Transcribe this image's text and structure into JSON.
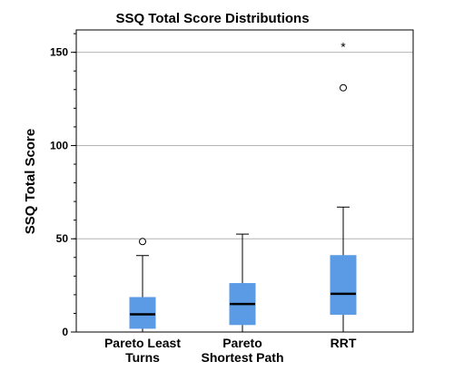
{
  "chart_data": {
    "type": "boxplot",
    "title": "SSQ Total Score Distributions",
    "xlabel": "",
    "ylabel": "SSQ Total Score",
    "ylim": [
      0,
      162
    ],
    "yticks": [
      0,
      50,
      100,
      150
    ],
    "minor_tick_step": 10,
    "grid": "horizontal at 50, 100, 150",
    "colors": {
      "box": "#5b9be6",
      "median": "#000000",
      "grid": "#b3b3b3"
    },
    "categories": [
      {
        "lines": [
          "Pareto Least",
          "Turns"
        ],
        "whisker_low": 0,
        "q1": 2,
        "median": 9.5,
        "q3": 18.5,
        "whisker_high": 41,
        "outliers": [
          48.5
        ],
        "extremes": []
      },
      {
        "lines": [
          "Pareto",
          "Shortest Path"
        ],
        "whisker_low": 0,
        "q1": 4,
        "median": 15,
        "q3": 26,
        "whisker_high": 52.5,
        "outliers": [],
        "extremes": []
      },
      {
        "lines": [
          "RRT"
        ],
        "whisker_low": 0,
        "q1": 9.5,
        "median": 20.5,
        "q3": 41,
        "whisker_high": 67,
        "outliers": [
          131
        ],
        "extremes": [
          153.5
        ]
      }
    ]
  }
}
